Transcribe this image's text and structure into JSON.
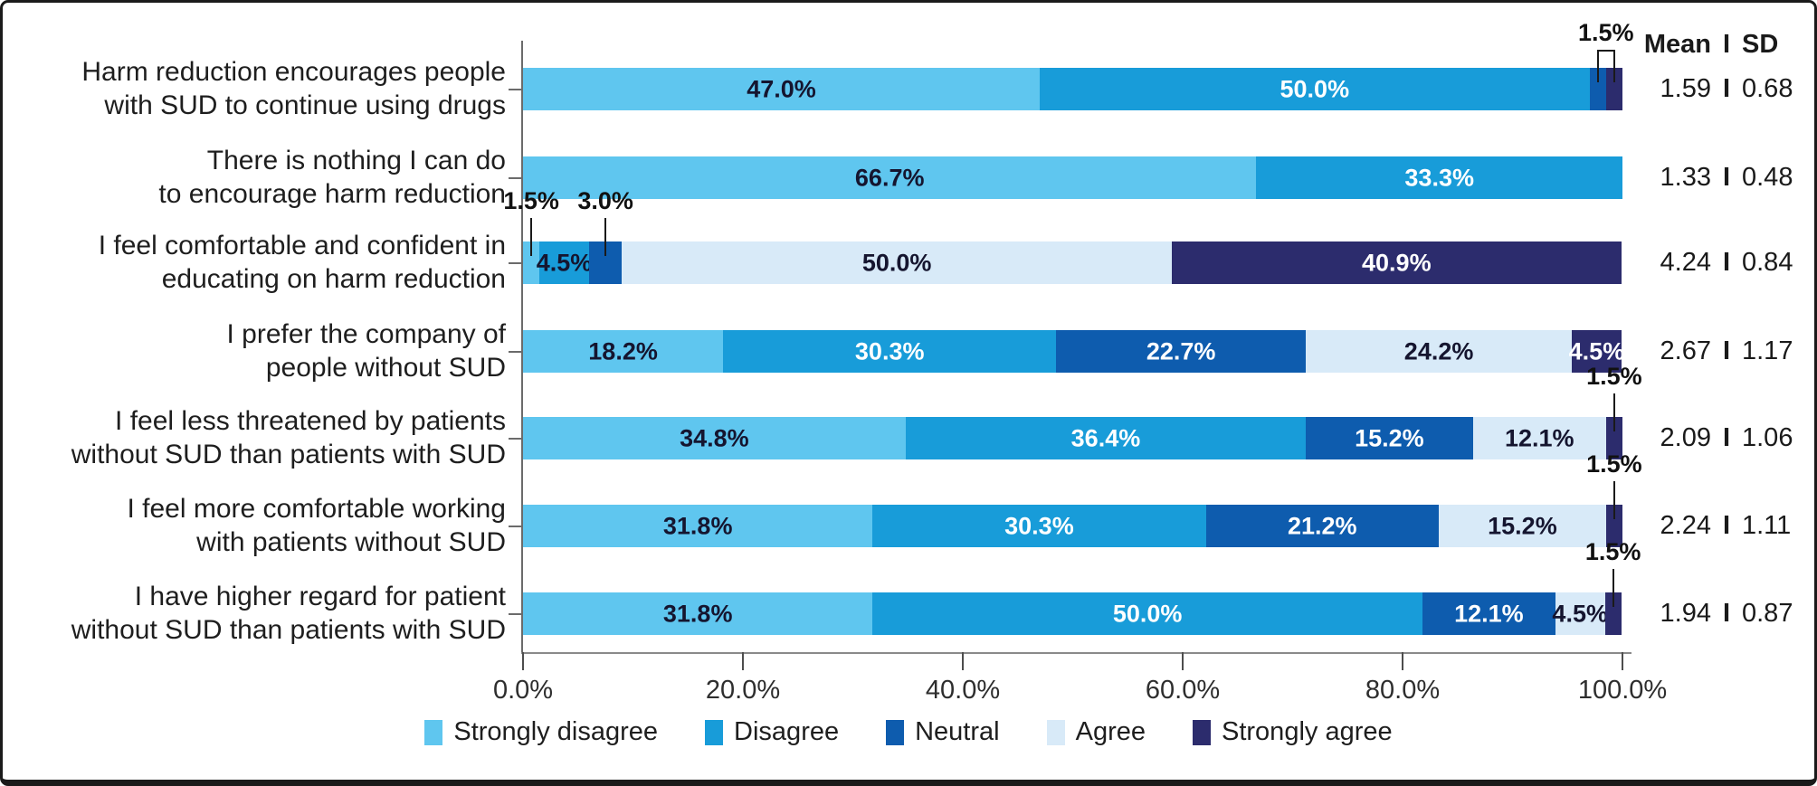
{
  "stats_header": {
    "mean_label": "Mean",
    "separator": "I",
    "sd_label": "SD"
  },
  "axis": {
    "ticks": [
      "0.0%",
      "20.0%",
      "40.0%",
      "60.0%",
      "80.0%",
      "100.0%"
    ],
    "min": 0,
    "max": 100
  },
  "legend": [
    {
      "key": "strongly_disagree",
      "label": "Strongly disagree",
      "color": "#5FC6EF"
    },
    {
      "key": "disagree",
      "label": "Disagree",
      "color": "#189CD9"
    },
    {
      "key": "neutral",
      "label": "Neutral",
      "color": "#0E5CAE"
    },
    {
      "key": "agree",
      "label": "Agree",
      "color": "#D8EAF8"
    },
    {
      "key": "strongly_agree",
      "label": "Strongly agree",
      "color": "#2C2C6D"
    }
  ],
  "chart_data": {
    "type": "bar",
    "variant": "stacked-horizontal",
    "title": "",
    "xlabel": "",
    "ylabel": "",
    "xlim": [
      0,
      100
    ],
    "x_tick_labels": [
      "0.0%",
      "20.0%",
      "40.0%",
      "60.0%",
      "80.0%",
      "100.0%"
    ],
    "legend_position": "bottom",
    "series_order": [
      "Strongly disagree",
      "Disagree",
      "Neutral",
      "Agree",
      "Strongly agree"
    ],
    "categories": [
      {
        "label_lines": [
          "Harm reduction encourages people",
          "with SUD to continue using drugs"
        ],
        "mean": "1.59",
        "sd": "0.68",
        "segments": [
          {
            "key": "strongly_disagree",
            "value": 47.0,
            "label": "47.0%",
            "label_color": "dark",
            "show_label": true
          },
          {
            "key": "disagree",
            "value": 50.0,
            "label": "50.0%",
            "label_color": "light",
            "show_label": true
          },
          {
            "key": "neutral",
            "value": 1.5,
            "label": "1.5%",
            "show_label": false
          },
          {
            "key": "strongly_agree",
            "value": 1.5,
            "label": "1.5%",
            "show_label": false
          }
        ],
        "annotations": [
          {
            "type": "bracket",
            "from_index": 2,
            "to_index": 3,
            "label": "1.5%"
          }
        ]
      },
      {
        "label_lines": [
          "There is nothing I can do",
          "to encourage harm reduction"
        ],
        "mean": "1.33",
        "sd": "0.48",
        "segments": [
          {
            "key": "strongly_disagree",
            "value": 66.7,
            "label": "66.7%",
            "label_color": "dark",
            "show_label": true
          },
          {
            "key": "disagree",
            "value": 33.3,
            "label": "33.3%",
            "label_color": "light",
            "show_label": true
          }
        ],
        "annotations": []
      },
      {
        "label_lines": [
          "I feel comfortable and confident in",
          "educating on harm reduction"
        ],
        "mean": "4.24",
        "sd": "0.84",
        "segments": [
          {
            "key": "strongly_disagree",
            "value": 1.5,
            "label": "1.5%",
            "show_label": false
          },
          {
            "key": "disagree",
            "value": 4.5,
            "label": "4.5%",
            "label_color": "dark",
            "show_label": true
          },
          {
            "key": "neutral",
            "value": 3.0,
            "label": "3.0%",
            "show_label": false
          },
          {
            "key": "agree",
            "value": 50.0,
            "label": "50.0%",
            "label_color": "dark",
            "show_label": true
          },
          {
            "key": "strongly_agree",
            "value": 40.9,
            "label": "40.9%",
            "label_color": "light",
            "show_label": true
          }
        ],
        "annotations": [
          {
            "type": "callout",
            "segment_index": 0,
            "label": "1.5%"
          },
          {
            "type": "callout",
            "segment_index": 2,
            "label": "3.0%"
          }
        ]
      },
      {
        "label_lines": [
          "I prefer the company of",
          "people without SUD"
        ],
        "mean": "2.67",
        "sd": "1.17",
        "segments": [
          {
            "key": "strongly_disagree",
            "value": 18.2,
            "label": "18.2%",
            "label_color": "dark",
            "show_label": true
          },
          {
            "key": "disagree",
            "value": 30.3,
            "label": "30.3%",
            "label_color": "light",
            "show_label": true
          },
          {
            "key": "neutral",
            "value": 22.7,
            "label": "22.7%",
            "label_color": "light",
            "show_label": true
          },
          {
            "key": "agree",
            "value": 24.2,
            "label": "24.2%",
            "label_color": "dark",
            "show_label": true
          },
          {
            "key": "strongly_agree",
            "value": 4.5,
            "label": "4.5%",
            "label_color": "light",
            "show_label": true
          }
        ],
        "annotations": []
      },
      {
        "label_lines": [
          "I feel less threatened by patients",
          "without SUD than patients with SUD"
        ],
        "mean": "2.09",
        "sd": "1.06",
        "segments": [
          {
            "key": "strongly_disagree",
            "value": 34.8,
            "label": "34.8%",
            "label_color": "dark",
            "show_label": true
          },
          {
            "key": "disagree",
            "value": 36.4,
            "label": "36.4%",
            "label_color": "light",
            "show_label": true
          },
          {
            "key": "neutral",
            "value": 15.2,
            "label": "15.2%",
            "label_color": "light",
            "show_label": true
          },
          {
            "key": "agree",
            "value": 12.1,
            "label": "12.1%",
            "label_color": "dark",
            "show_label": true
          },
          {
            "key": "strongly_agree",
            "value": 1.5,
            "label": "1.5%",
            "show_label": false
          }
        ],
        "annotations": [
          {
            "type": "callout",
            "segment_index": 4,
            "label": "1.5%"
          }
        ]
      },
      {
        "label_lines": [
          "I feel more comfortable working",
          "with patients without SUD"
        ],
        "mean": "2.24",
        "sd": "1.11",
        "segments": [
          {
            "key": "strongly_disagree",
            "value": 31.8,
            "label": "31.8%",
            "label_color": "dark",
            "show_label": true
          },
          {
            "key": "disagree",
            "value": 30.3,
            "label": "30.3%",
            "label_color": "light",
            "show_label": true
          },
          {
            "key": "neutral",
            "value": 21.2,
            "label": "21.2%",
            "label_color": "light",
            "show_label": true
          },
          {
            "key": "agree",
            "value": 15.2,
            "label": "15.2%",
            "label_color": "dark",
            "show_label": true
          },
          {
            "key": "strongly_agree",
            "value": 1.5,
            "label": "1.5%",
            "show_label": false
          }
        ],
        "annotations": [
          {
            "type": "callout",
            "segment_index": 4,
            "label": "1.5%"
          }
        ]
      },
      {
        "label_lines": [
          "I have higher regard for patient",
          "without SUD than patients with SUD"
        ],
        "mean": "1.94",
        "sd": "0.87",
        "segments": [
          {
            "key": "strongly_disagree",
            "value": 31.8,
            "label": "31.8%",
            "label_color": "dark",
            "show_label": true
          },
          {
            "key": "disagree",
            "value": 50.0,
            "label": "50.0%",
            "label_color": "light",
            "show_label": true
          },
          {
            "key": "neutral",
            "value": 12.1,
            "label": "12.1%",
            "label_color": "light",
            "show_label": true
          },
          {
            "key": "agree",
            "value": 4.5,
            "label": "4.5%",
            "label_color": "dark",
            "show_label": true
          },
          {
            "key": "strongly_agree",
            "value": 1.5,
            "label": "1.5%",
            "show_label": false
          }
        ],
        "annotations": [
          {
            "type": "callout",
            "segment_index": 4,
            "label": "1.5%"
          }
        ]
      }
    ]
  }
}
